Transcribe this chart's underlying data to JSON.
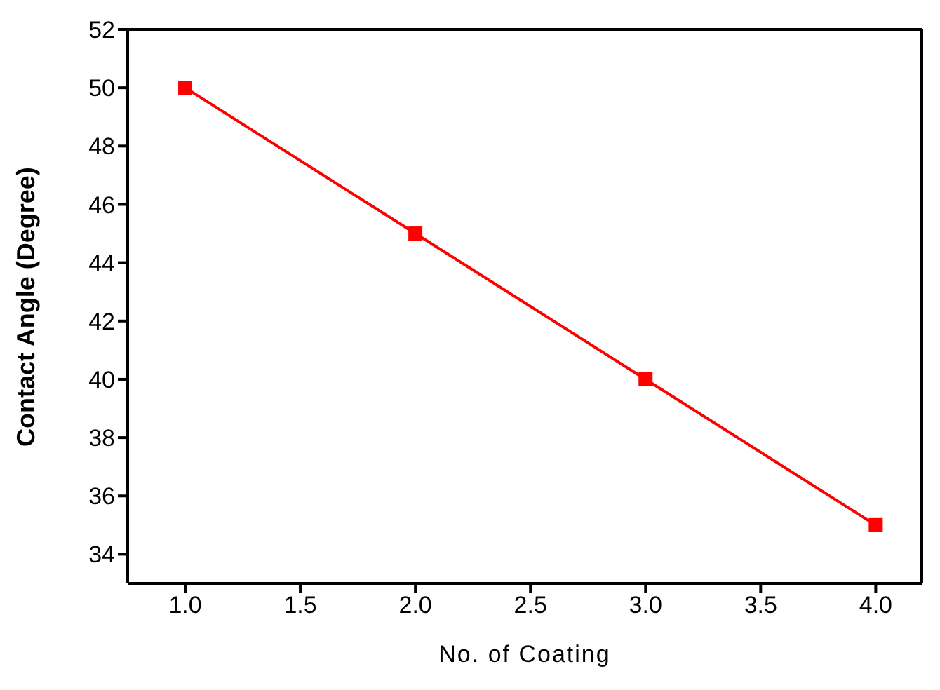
{
  "chart_data": {
    "type": "line",
    "xlabel": "No. of Coating",
    "ylabel": "Contact Angle (Degree)",
    "x": [
      1.0,
      2.0,
      3.0,
      4.0
    ],
    "series": [
      {
        "color": "#ff0000",
        "values": [
          50,
          45,
          40,
          35
        ]
      }
    ],
    "xlim": [
      0.75,
      4.2
    ],
    "xticks": [
      {
        "value": 1,
        "label": "1.0"
      },
      {
        "value": 1.5,
        "label": "1.5"
      },
      {
        "value": 2,
        "label": "2.0"
      },
      {
        "value": 2.5,
        "label": "2.5"
      },
      {
        "value": 3,
        "label": "3.0"
      },
      {
        "value": 3.5,
        "label": "3.5"
      },
      {
        "value": 4,
        "label": "4.0"
      }
    ],
    "ylim": [
      33,
      52
    ],
    "yticks": [
      34,
      36,
      38,
      40,
      42,
      44,
      46,
      48,
      50,
      52
    ],
    "marker": "square",
    "line_style": "solid",
    "grid": false,
    "legend": false
  }
}
